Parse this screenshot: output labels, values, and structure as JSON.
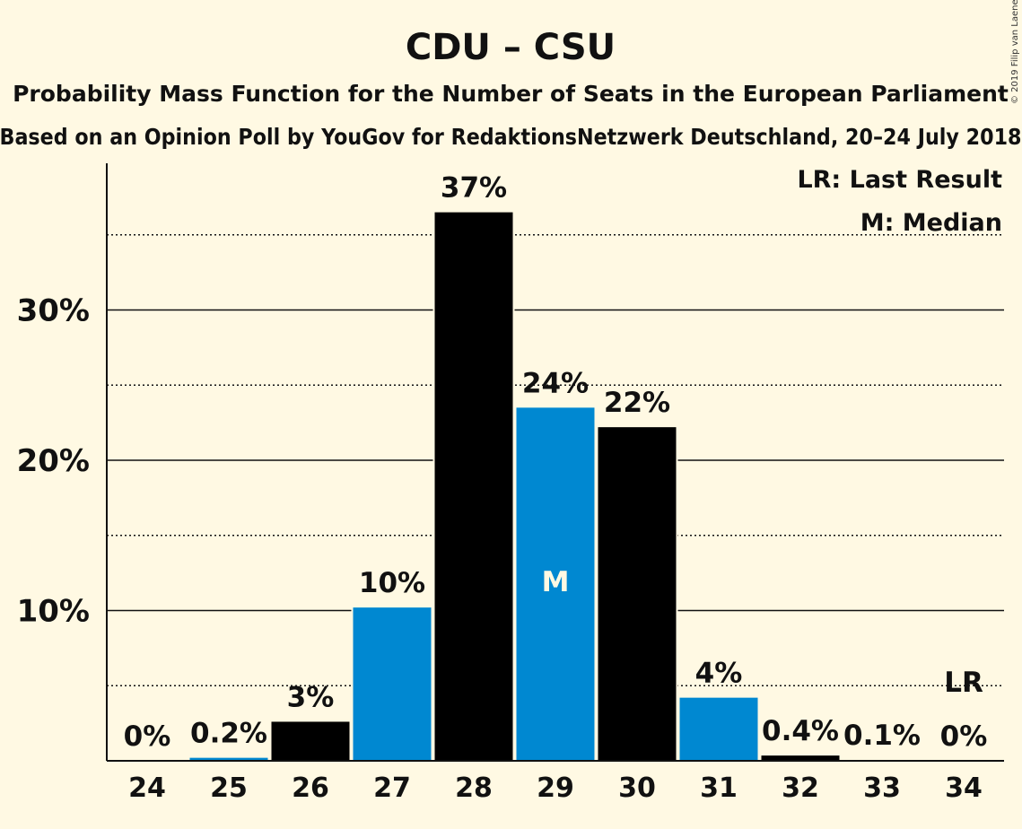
{
  "colors": {
    "background": "#fff9e3",
    "bar_dark": "#000000",
    "bar_accent": "#0088d1",
    "text": "#111111"
  },
  "chart_data": {
    "type": "bar",
    "title": "CDU – CSU",
    "subtitle": "Probability Mass Function for the Number of Seats in the European Parliament",
    "source": "Based on an Opinion Poll by YouGov for RedaktionsNetzwerk Deutschland, 20–24 July 2018",
    "copyright": "© 2019 Filip van Laenen",
    "xlabel": "",
    "ylabel": "",
    "ylim": [
      0,
      39
    ],
    "yticks": [
      {
        "value": 10,
        "label": "10%"
      },
      {
        "value": 20,
        "label": "20%"
      },
      {
        "value": 30,
        "label": "30%"
      }
    ],
    "minor_gridlines": [
      5,
      15,
      25,
      35
    ],
    "categories": [
      "24",
      "25",
      "26",
      "27",
      "28",
      "29",
      "30",
      "31",
      "32",
      "33",
      "34"
    ],
    "values": [
      0,
      0.2,
      2.6,
      10.2,
      36.5,
      23.5,
      22.2,
      4.2,
      0.35,
      0.05,
      0
    ],
    "labels": [
      "0%",
      "0.2%",
      "3%",
      "10%",
      "37%",
      "24%",
      "22%",
      "4%",
      "0.4%",
      "0.1%",
      "0%"
    ],
    "bar_colors": [
      "#000000",
      "#0088d1",
      "#000000",
      "#0088d1",
      "#000000",
      "#0088d1",
      "#000000",
      "#0088d1",
      "#000000",
      "#0088d1",
      "#000000"
    ],
    "median_category": "29",
    "median_marker": "M",
    "last_result_category": "34",
    "last_result_marker": "LR",
    "legend": [
      "LR: Last Result",
      "M: Median"
    ],
    "legend_position": "top-right",
    "grid": true
  }
}
